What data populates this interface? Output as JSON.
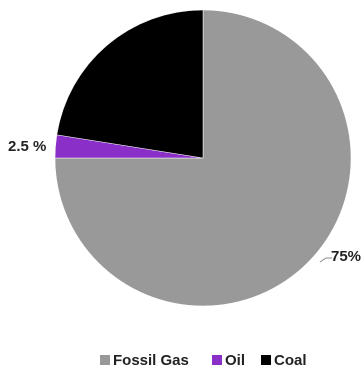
{
  "chart_data": {
    "type": "pie",
    "title": "",
    "slices": [
      {
        "name": "Fossil Gas",
        "value": 75,
        "color": "#999999",
        "label": ""
      },
      {
        "name": "Oil",
        "value": 2.5,
        "color": "#8b2fc9",
        "label": "2.5 %"
      },
      {
        "name": "Coal",
        "value": 22.5,
        "color": "#000000",
        "label": ""
      }
    ],
    "data_labels": [
      {
        "series": "Fossil Gas",
        "text": "75%"
      },
      {
        "series": "Oil",
        "text": "2.5 %"
      }
    ],
    "legend": {
      "placement": "bottom",
      "entries": [
        "Fossil Gas",
        "Oil",
        "Coal"
      ]
    }
  }
}
